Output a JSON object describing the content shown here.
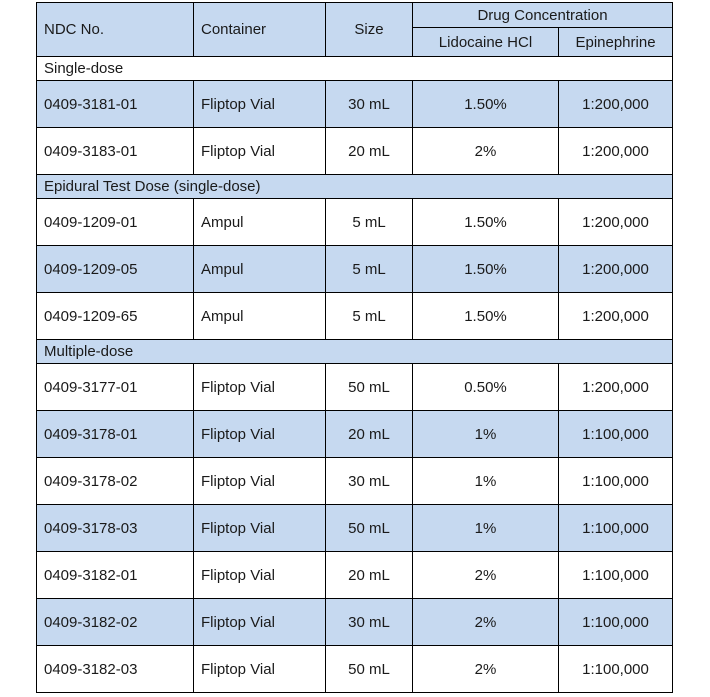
{
  "table": {
    "header": {
      "ndc": "NDC No.",
      "container": "Container",
      "size": "Size",
      "drug_concentration": "Drug Concentration",
      "lidocaine": "Lidocaine HCl",
      "epinephrine": "Epinephrine"
    },
    "sections": [
      {
        "label": "Single-dose",
        "shaded": false,
        "rows": [
          {
            "ndc": "0409-3181-01",
            "container": "Fliptop Vial",
            "size": "30 mL",
            "lidocaine": "1.50%",
            "epinephrine": "1:200,000",
            "shaded": true
          },
          {
            "ndc": "0409-3183-01",
            "container": "Fliptop Vial",
            "size": "20 mL",
            "lidocaine": "2%",
            "epinephrine": "1:200,000",
            "shaded": false
          }
        ]
      },
      {
        "label": "Epidural Test Dose (single-dose)",
        "shaded": true,
        "rows": [
          {
            "ndc": "0409-1209-01",
            "container": "Ampul",
            "size": "5 mL",
            "lidocaine": "1.50%",
            "epinephrine": "1:200,000",
            "shaded": false
          },
          {
            "ndc": "0409-1209-05",
            "container": "Ampul",
            "size": "5 mL",
            "lidocaine": "1.50%",
            "epinephrine": "1:200,000",
            "shaded": true
          },
          {
            "ndc": "0409-1209-65",
            "container": "Ampul",
            "size": "5 mL",
            "lidocaine": "1.50%",
            "epinephrine": "1:200,000",
            "shaded": false
          }
        ]
      },
      {
        "label": "Multiple-dose",
        "shaded": true,
        "rows": [
          {
            "ndc": "0409-3177-01",
            "container": "Fliptop Vial",
            "size": "50 mL",
            "lidocaine": "0.50%",
            "epinephrine": "1:200,000",
            "shaded": false
          },
          {
            "ndc": "0409-3178-01",
            "container": "Fliptop Vial",
            "size": "20 mL",
            "lidocaine": "1%",
            "epinephrine": "1:100,000",
            "shaded": true
          },
          {
            "ndc": "0409-3178-02",
            "container": "Fliptop Vial",
            "size": "30 mL",
            "lidocaine": "1%",
            "epinephrine": "1:100,000",
            "shaded": false
          },
          {
            "ndc": "0409-3178-03",
            "container": "Fliptop Vial",
            "size": "50 mL",
            "lidocaine": "1%",
            "epinephrine": "1:100,000",
            "shaded": true
          },
          {
            "ndc": "0409-3182-01",
            "container": "Fliptop Vial",
            "size": "20 mL",
            "lidocaine": "2%",
            "epinephrine": "1:100,000",
            "shaded": false
          },
          {
            "ndc": "0409-3182-02",
            "container": "Fliptop Vial",
            "size": "30 mL",
            "lidocaine": "2%",
            "epinephrine": "1:100,000",
            "shaded": true
          },
          {
            "ndc": "0409-3182-03",
            "container": "Fliptop Vial",
            "size": "50 mL",
            "lidocaine": "2%",
            "epinephrine": "1:100,000",
            "shaded": false
          }
        ]
      }
    ],
    "colors": {
      "shade": "#c6d9f0",
      "border": "#000000",
      "text": "#1a1a1a",
      "background": "#ffffff"
    }
  }
}
